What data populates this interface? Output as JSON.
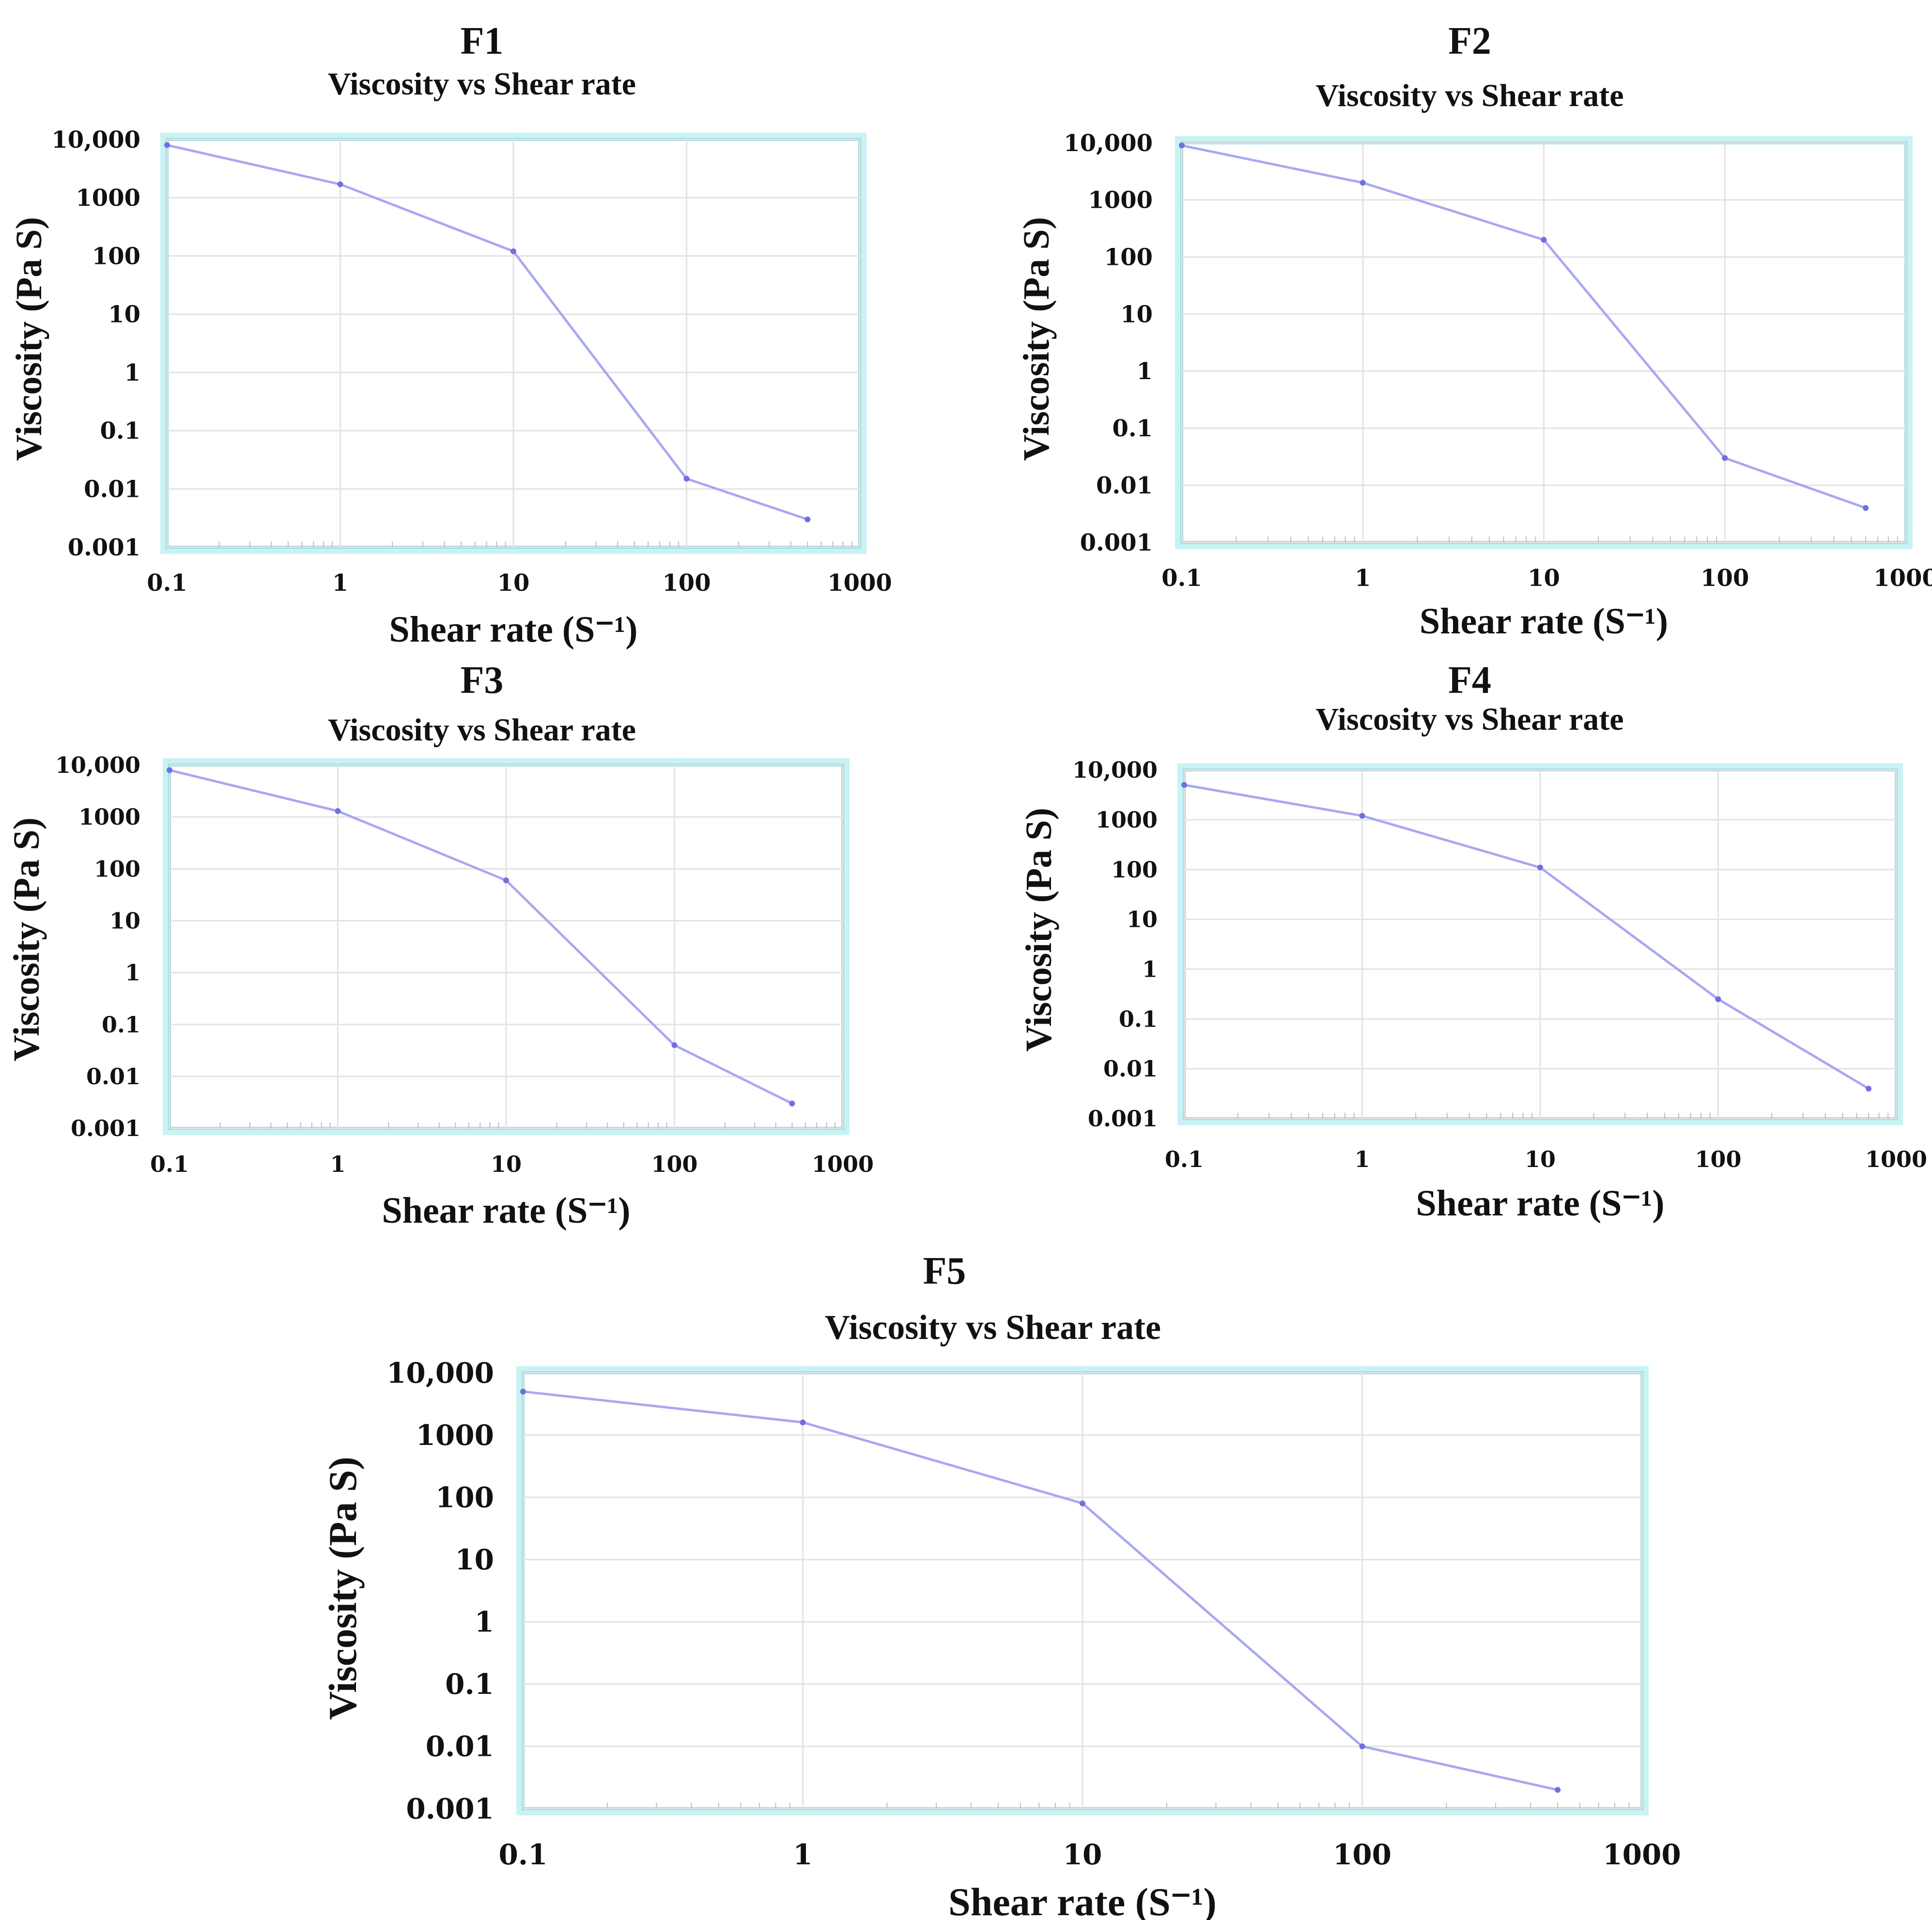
{
  "chart_data": [
    {
      "panel": "F1",
      "type": "line",
      "title": "Viscosity vs Shear rate",
      "xlabel": "Shear rate (S⁻¹)",
      "ylabel": "Viscosity (Pa S)",
      "xscale": "log",
      "yscale": "log",
      "xlim": [
        0.1,
        1000
      ],
      "ylim": [
        0.001,
        10000
      ],
      "xticks": [
        "0.1",
        "1",
        "10",
        "100",
        "1000"
      ],
      "yticks": [
        "0.001",
        "0.01",
        "0.1",
        "1",
        "10",
        "100",
        "1000",
        "10,000"
      ],
      "grid": true,
      "series": [
        {
          "x": [
            0.1,
            1,
            10,
            100,
            500
          ],
          "y": [
            8000,
            1700,
            120,
            0.015,
            0.003
          ]
        }
      ]
    },
    {
      "panel": "F2",
      "type": "line",
      "title": "Viscosity vs Shear rate",
      "xlabel": "Shear rate (S⁻¹)",
      "ylabel": "Viscosity (Pa S)",
      "xscale": "log",
      "yscale": "log",
      "xlim": [
        0.1,
        1000
      ],
      "ylim": [
        0.001,
        10000
      ],
      "xticks": [
        "0.1",
        "1",
        "10",
        "100",
        "1000"
      ],
      "yticks": [
        "0.001",
        "0.01",
        "0.1",
        "1",
        "10",
        "100",
        "1000",
        "10,000"
      ],
      "grid": true,
      "series": [
        {
          "x": [
            0.1,
            1,
            10,
            100,
            600
          ],
          "y": [
            9000,
            2000,
            200,
            0.03,
            0.004
          ]
        }
      ]
    },
    {
      "panel": "F3",
      "type": "line",
      "title": "Viscosity vs Shear rate",
      "xlabel": "Shear rate (S⁻¹)",
      "ylabel": "Viscosity (Pa S)",
      "xscale": "log",
      "yscale": "log",
      "xlim": [
        0.1,
        1000
      ],
      "ylim": [
        0.001,
        10000
      ],
      "xticks": [
        "0.1",
        "1",
        "10",
        "100",
        "1000"
      ],
      "yticks": [
        "0.001",
        "0.01",
        "0.1",
        "1",
        "10",
        "100",
        "1000",
        "10,000"
      ],
      "grid": true,
      "series": [
        {
          "x": [
            0.1,
            1,
            10,
            100,
            500
          ],
          "y": [
            8000,
            1300,
            60,
            0.04,
            0.003
          ]
        }
      ]
    },
    {
      "panel": "F4",
      "type": "line",
      "title": "Viscosity vs Shear rate",
      "xlabel": "Shear rate (S⁻¹)",
      "ylabel": "Viscosity (Pa S)",
      "xscale": "log",
      "yscale": "log",
      "xlim": [
        0.1,
        1000
      ],
      "ylim": [
        0.001,
        10000
      ],
      "xticks": [
        "0.1",
        "1",
        "10",
        "100",
        "1000"
      ],
      "yticks": [
        "0.001",
        "0.01",
        "0.1",
        "1",
        "10",
        "100",
        "1000",
        "10,000"
      ],
      "grid": true,
      "series": [
        {
          "x": [
            0.1,
            1,
            10,
            100,
            700
          ],
          "y": [
            5000,
            1200,
            110,
            0.25,
            0.004
          ]
        }
      ]
    },
    {
      "panel": "F5",
      "type": "line",
      "title": "Viscosity vs Shear rate",
      "xlabel": "Shear rate (S⁻¹)",
      "ylabel": "Viscosity (Pa S)",
      "xscale": "log",
      "yscale": "log",
      "xlim": [
        0.1,
        1000
      ],
      "ylim": [
        0.001,
        10000
      ],
      "xticks": [
        "0.1",
        "1",
        "10",
        "100",
        "1000"
      ],
      "yticks": [
        "0.001",
        "0.01",
        "0.1",
        "1",
        "10",
        "100",
        "1000",
        "10,000"
      ],
      "grid": true,
      "series": [
        {
          "x": [
            0.1,
            1,
            10,
            100,
            500
          ],
          "y": [
            5000,
            1600,
            80,
            0.01,
            0.002
          ]
        }
      ]
    }
  ]
}
